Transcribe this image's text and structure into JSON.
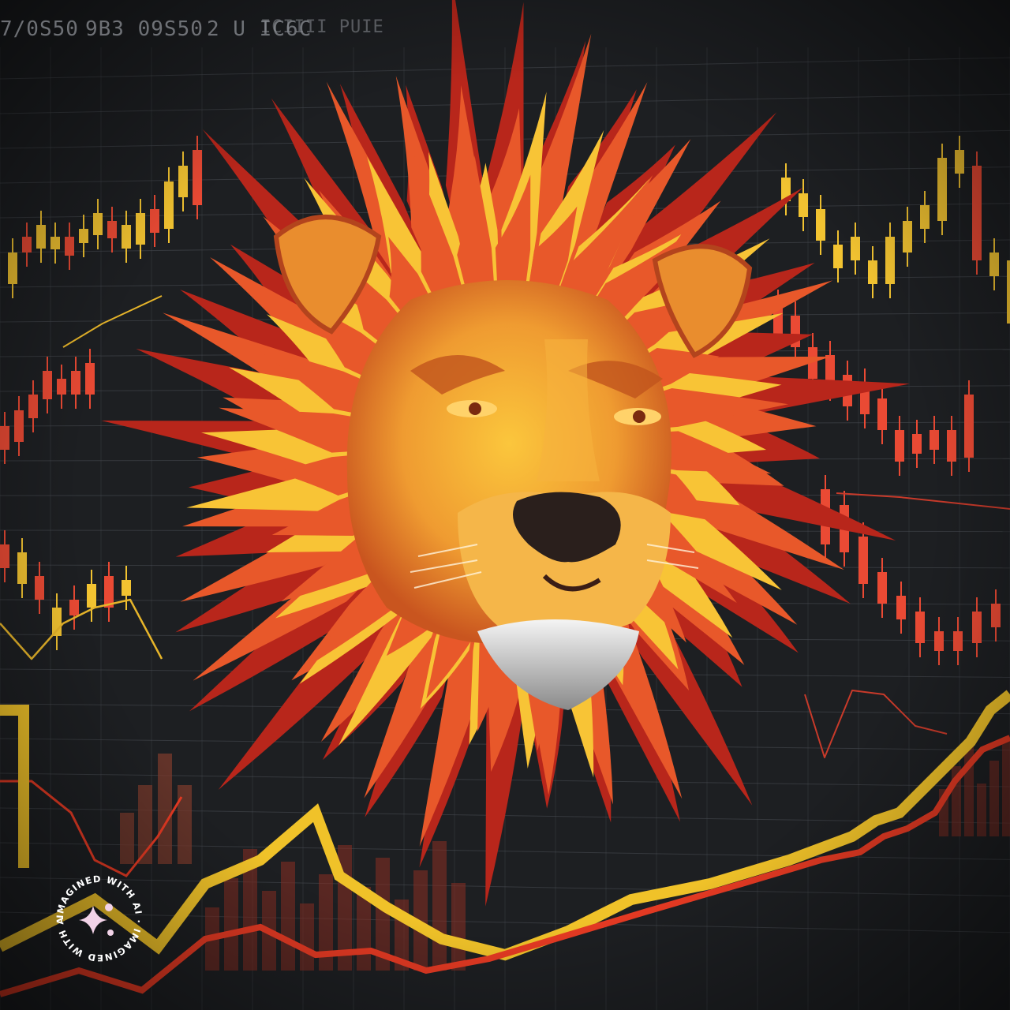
{
  "scene": {
    "subject": "lion-head",
    "colors": {
      "background": "#1d1f22",
      "grid": "#4a4e54",
      "candle_up": "#f2c331",
      "candle_down": "#ea4a34",
      "mane_dark": "#b8261b",
      "mane_mid": "#e8582a",
      "mane_light": "#f8c436",
      "face": "#f1a43a"
    }
  },
  "header_text": {
    "t1": "7/0S50",
    "t2": "9B3 09S50",
    "t3": "2 U IC6C",
    "t4": "ICIIII PUIE"
  },
  "badge": {
    "ring_text": "IMAGINED WITH AI · IMAGINED WITH AI ·",
    "icon": "sparkle-icon"
  }
}
